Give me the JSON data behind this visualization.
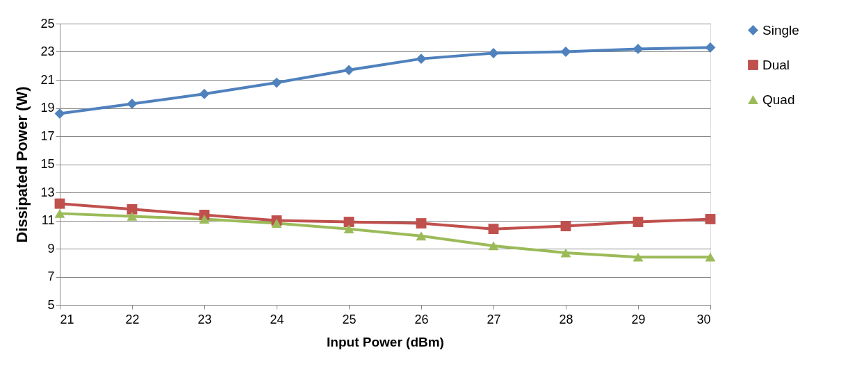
{
  "chart_data": {
    "type": "line",
    "xlabel": "Input Power (dBm)",
    "ylabel": "Dissipated Power (W)",
    "x": [
      21,
      22,
      23,
      24,
      25,
      26,
      27,
      28,
      29,
      30
    ],
    "series": [
      {
        "name": "Single",
        "color": "#4f81bd",
        "marker": "diamond",
        "values": [
          18.6,
          19.3,
          20.0,
          20.8,
          21.7,
          22.5,
          22.9,
          23.0,
          23.2,
          23.3
        ]
      },
      {
        "name": "Dual",
        "color": "#c0504d",
        "marker": "square",
        "values": [
          12.2,
          11.8,
          11.4,
          11.0,
          10.9,
          10.8,
          10.4,
          10.6,
          10.9,
          11.1
        ]
      },
      {
        "name": "Quad",
        "color": "#9bbb59",
        "marker": "triangle",
        "values": [
          11.5,
          11.3,
          11.1,
          10.8,
          10.4,
          9.9,
          9.2,
          8.7,
          8.4,
          8.4
        ]
      }
    ],
    "xlim": [
      21,
      30
    ],
    "xticks": [
      21,
      22,
      23,
      24,
      25,
      26,
      27,
      28,
      29,
      30
    ],
    "ylim": [
      5,
      25
    ],
    "yticks": [
      5,
      7,
      9,
      11,
      13,
      15,
      17,
      19,
      21,
      23,
      25
    ],
    "grid": "y",
    "legend": "right",
    "line_style": "solid"
  }
}
